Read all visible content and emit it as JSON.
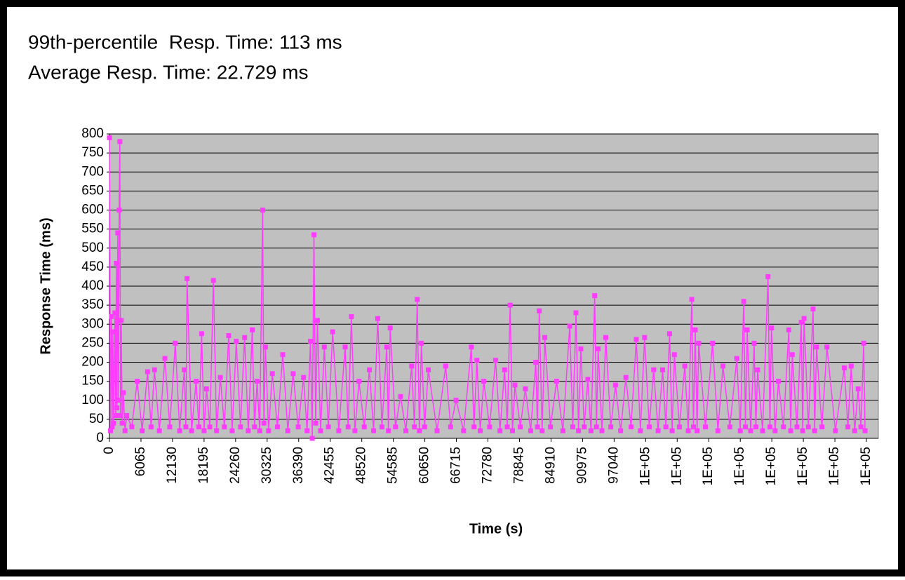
{
  "chart_data": {
    "type": "line",
    "title": "99th-percentile  Resp. Time: 113 ms",
    "subtitle": "Average Resp. Time: 22.729 ms",
    "x_label": "Time (s)",
    "y_label": "Response Time (ms)",
    "xlim": [
      0,
      147850
    ],
    "xticks": [
      0,
      6065,
      12130,
      18195,
      24260,
      30325,
      36390,
      42455,
      48520,
      54585,
      60650,
      66715,
      72780,
      78845,
      84910,
      90975,
      97040,
      {
        "value": 103105,
        "label": "1E+05"
      },
      {
        "value": 109170,
        "label": "1E+05"
      },
      {
        "value": 115235,
        "label": "1E+05"
      },
      {
        "value": 121300,
        "label": "1E+05"
      },
      {
        "value": 127365,
        "label": "1E+05"
      },
      {
        "value": 133430,
        "label": "1E+05"
      },
      {
        "value": 139495,
        "label": "1E+05"
      },
      {
        "value": 145560,
        "label": "1E+05"
      }
    ],
    "ylim": [
      0,
      800
    ],
    "yticks": [
      0,
      50,
      100,
      150,
      200,
      250,
      300,
      350,
      400,
      450,
      500,
      550,
      600,
      650,
      700,
      750,
      800
    ],
    "grid": true,
    "plot_background": "#c0c0c0",
    "series": [
      {
        "color": "#ff3cff",
        "x": [
          0,
          200,
          400,
          530,
          667,
          800,
          1066,
          1200,
          1333,
          1450,
          1600,
          1750,
          1866,
          2000,
          2130,
          2266,
          2450,
          2666,
          3000,
          3333,
          4300,
          5332,
          6300,
          7332,
          8000,
          8665,
          9600,
          10664,
          11600,
          12664,
          13500,
          14396,
          14700,
          14930,
          15800,
          16663,
          17200,
          17729,
          18200,
          18662,
          19300,
          19995,
          20600,
          21328,
          22100,
          22928,
          23600,
          24394,
          25200,
          25994,
          26700,
          27460,
          27900,
          28393,
          28900,
          29459,
          29700,
          29993,
          30600,
          31326,
          32300,
          33325,
          34300,
          35325,
          36300,
          37324,
          38000,
          38657,
          39000,
          39324,
          39650,
          39990,
          40600,
          41323,
          42100,
          42923,
          44100,
          45322,
          45900,
          46522,
          47200,
          47988,
          49000,
          49988,
          50800,
          51587,
          52400,
          53320,
          53650,
          53987,
          55000,
          55986,
          57000,
          58119,
          58650,
          59185,
          59600,
          59985,
          60600,
          61318,
          63000,
          64651,
          65600,
          66650,
          68100,
          69583,
          70100,
          70649,
          71300,
          71982,
          73100,
          74248,
          75100,
          75981,
          76500,
          77047,
          77500,
          77981,
          79000,
          79980,
          81000,
          81980,
          82300,
          82646,
          83200,
          83712,
          84800,
          85979,
          87200,
          88511,
          89100,
          89711,
          90200,
          90644,
          91300,
          91977,
          92600,
          93310,
          93650,
          93977,
          94700,
          95443,
          96400,
          97309,
          98300,
          99309,
          100300,
          101308,
          102100,
          102908,
          103800,
          104641,
          105500,
          106373,
          107000,
          107706,
          108200,
          108640,
          109600,
          110639,
          111300,
          111972,
          112300,
          112639,
          113000,
          113305,
          114600,
          115971,
          117000,
          117971,
          119300,
          120636,
          121300,
          121970,
          122300,
          122636,
          123300,
          123969,
          124300,
          124636,
          125600,
          126635,
          127000,
          127302,
          128000,
          128635,
          129600,
          130634,
          131000,
          131301,
          132200,
          133034,
          133300,
          133567,
          134400,
          135300,
          135600,
          135966,
          137000,
          137966,
          139600,
          141298,
          142000,
          142631,
          143300,
          143964,
          144500,
          145030,
          145297
        ],
        "values": [
          790,
          20,
          320,
          30,
          280,
          40,
          330,
          60,
          460,
          80,
          540,
          100,
          600,
          780,
          60,
          310,
          40,
          120,
          20,
          60,
          30,
          150,
          20,
          175,
          30,
          180,
          20,
          210,
          30,
          250,
          20,
          180,
          30,
          420,
          20,
          150,
          30,
          275,
          20,
          130,
          30,
          415,
          20,
          160,
          30,
          270,
          20,
          255,
          30,
          265,
          20,
          285,
          30,
          150,
          20,
          600,
          40,
          240,
          20,
          170,
          30,
          220,
          20,
          170,
          30,
          160,
          20,
          255,
          0,
          535,
          40,
          310,
          20,
          240,
          30,
          280,
          20,
          240,
          30,
          320,
          20,
          150,
          30,
          180,
          20,
          315,
          30,
          240,
          20,
          290,
          30,
          110,
          20,
          190,
          30,
          365,
          20,
          250,
          30,
          180,
          20,
          190,
          30,
          100,
          20,
          240,
          30,
          205,
          20,
          150,
          30,
          205,
          20,
          180,
          30,
          350,
          20,
          140,
          30,
          130,
          20,
          200,
          30,
          335,
          20,
          265,
          30,
          150,
          20,
          295,
          30,
          330,
          20,
          235,
          30,
          155,
          20,
          375,
          30,
          235,
          20,
          265,
          30,
          140,
          20,
          160,
          30,
          260,
          20,
          265,
          30,
          180,
          20,
          180,
          30,
          275,
          20,
          220,
          30,
          190,
          20,
          365,
          30,
          285,
          20,
          250,
          30,
          250,
          20,
          190,
          30,
          210,
          20,
          360,
          30,
          285,
          20,
          250,
          30,
          180,
          20,
          425,
          30,
          290,
          20,
          150,
          30,
          285,
          20,
          220,
          30,
          305,
          20,
          315,
          30,
          340,
          20,
          240,
          30,
          240,
          20,
          185,
          30,
          190,
          20,
          130,
          30,
          250,
          20
        ]
      }
    ]
  }
}
